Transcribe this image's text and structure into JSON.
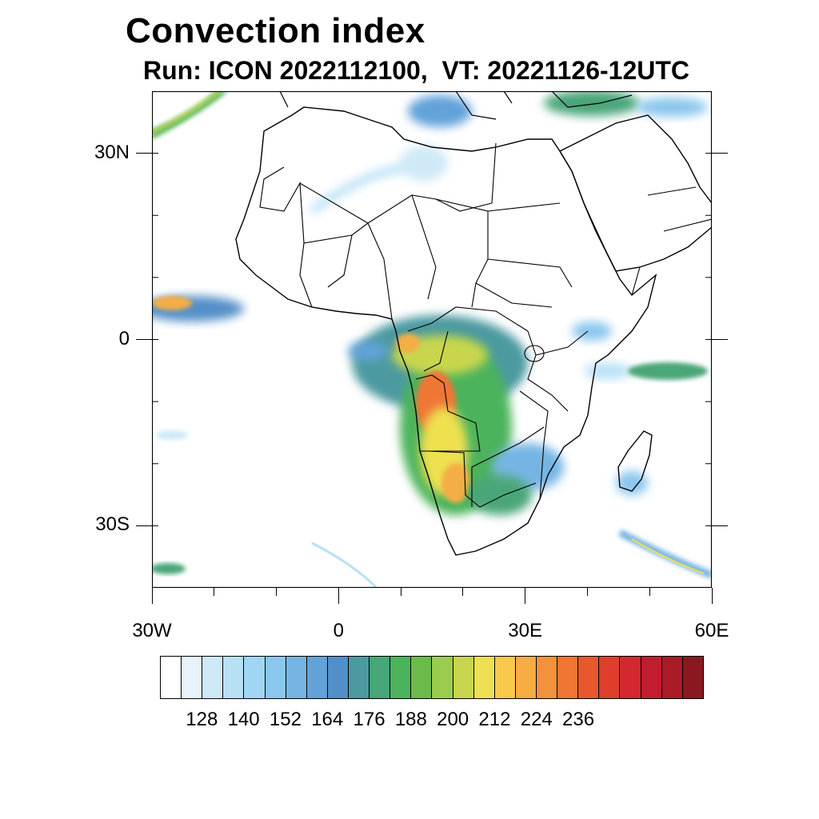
{
  "title": "Convection index",
  "subtitle": "Run: ICON 2022112100,  VT: 20221126-12UTC",
  "axes": {
    "lat_labels": [
      {
        "text": "30N",
        "lat": 30
      },
      {
        "text": "0",
        "lat": 0
      },
      {
        "text": "30S",
        "lat": -30
      }
    ],
    "lon_labels": [
      {
        "text": "30W",
        "lon": -30
      },
      {
        "text": "0",
        "lon": 0
      },
      {
        "text": "30E",
        "lon": 30
      },
      {
        "text": "60E",
        "lon": 60
      }
    ],
    "lon_range": [
      -30,
      60
    ],
    "lat_range": [
      -40,
      40
    ]
  },
  "colorbar": {
    "colors": [
      "#ffffff",
      "#e8f4fc",
      "#cfe9f7",
      "#b8e0f5",
      "#a0d6f4",
      "#8ac6ed",
      "#76b5e3",
      "#62a2d9",
      "#528fc8",
      "#4c9aa0",
      "#48a678",
      "#4bb35b",
      "#6bbb4a",
      "#9ccc4e",
      "#c8d64e",
      "#eee050",
      "#f8c94a",
      "#f5ad44",
      "#f3923c",
      "#f07634",
      "#e9572c",
      "#df3e2c",
      "#d3282f",
      "#c11d2e",
      "#aa1a27",
      "#8d1720"
    ],
    "labels": [
      "128",
      "140",
      "152",
      "164",
      "176",
      "188",
      "200",
      "212",
      "224",
      "236"
    ]
  },
  "chart_data": {
    "type": "heatmap",
    "title": "Convection index",
    "subtitle": "Run: ICON 2022112100,  VT: 20221126-12UTC",
    "x_ticks": [
      "30W",
      "0",
      "30E",
      "60E"
    ],
    "y_ticks": [
      "30N",
      "0",
      "30S"
    ],
    "levels": [
      128,
      140,
      152,
      164,
      176,
      188,
      200,
      212,
      224,
      236
    ],
    "features": [
      {
        "region": "Congo Basin / Angola / Namibia",
        "intensity": "high"
      },
      {
        "region": "East Atlantic near equator",
        "intensity": "moderate"
      },
      {
        "region": "Mozambique Channel / Madagascar",
        "intensity": "low"
      },
      {
        "region": "Indian Ocean near 5S",
        "intensity": "moderate"
      }
    ]
  }
}
